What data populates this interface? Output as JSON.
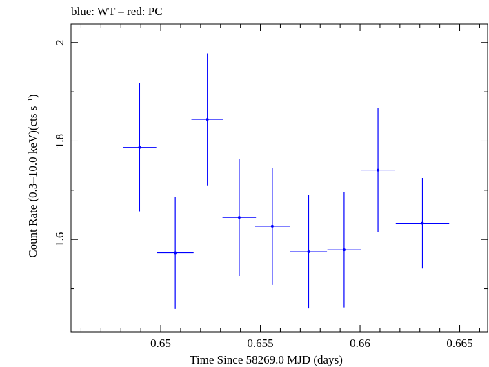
{
  "chart_data": {
    "type": "scatter",
    "title": "blue: WT – red: PC",
    "xlabel": "Time Since 58269.0 MJD (days)",
    "ylabel_main": "Count Rate (0.3–10.0 keV)(cts s",
    "ylabel_sup": "−1",
    "ylabel_close": ")",
    "xlim": [
      0.6455,
      0.6664
    ],
    "ylim": [
      1.4125,
      2.0375
    ],
    "xticks": [
      {
        "value": 0.65,
        "label": "0.65"
      },
      {
        "value": 0.655,
        "label": "0.655"
      },
      {
        "value": 0.66,
        "label": "0.66"
      },
      {
        "value": 0.665,
        "label": "0.665"
      }
    ],
    "yticks": [
      {
        "value": 1.6,
        "label": "1.6"
      },
      {
        "value": 1.8,
        "label": "1.8"
      },
      {
        "value": 2.0,
        "label": "2"
      }
    ],
    "series": [
      {
        "name": "WT",
        "color": "#0000ff",
        "points": [
          {
            "x": 0.64894,
            "y": 1.787,
            "xerr": 0.00084,
            "yerr": 0.13
          },
          {
            "x": 0.65073,
            "y": 1.573,
            "xerr": 0.00092,
            "yerr": 0.114
          },
          {
            "x": 0.65234,
            "y": 1.844,
            "xerr": 0.0008,
            "yerr": 0.134
          },
          {
            "x": 0.65394,
            "y": 1.645,
            "xerr": 0.00084,
            "yerr": 0.119
          },
          {
            "x": 0.6556,
            "y": 1.627,
            "xerr": 0.00089,
            "yerr": 0.119
          },
          {
            "x": 0.65742,
            "y": 1.575,
            "xerr": 0.00092,
            "yerr": 0.115
          },
          {
            "x": 0.6592,
            "y": 1.579,
            "xerr": 0.00084,
            "yerr": 0.117
          },
          {
            "x": 0.6609,
            "y": 1.741,
            "xerr": 0.00084,
            "yerr": 0.126
          },
          {
            "x": 0.66313,
            "y": 1.633,
            "xerr": 0.00134,
            "yerr": 0.092
          }
        ]
      }
    ]
  }
}
